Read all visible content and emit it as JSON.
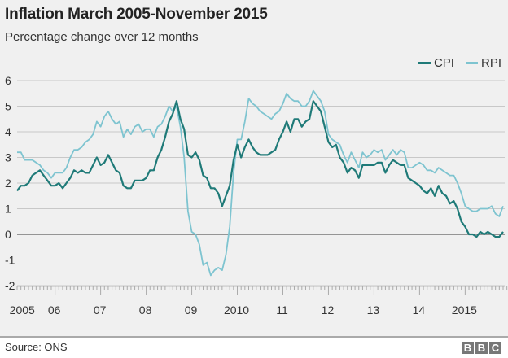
{
  "chart_data": {
    "type": "line",
    "title": "Inflation March 2005-November 2015",
    "subtitle": "Percentage change over 12 months",
    "xlabel": "",
    "ylabel": "",
    "x_start": "2005-03",
    "x_end": "2015-11",
    "x_tick_labels": [
      "2005",
      "06",
      "07",
      "08",
      "09",
      "2010",
      "11",
      "12",
      "13",
      "14",
      "2015"
    ],
    "ylim": [
      -2,
      6
    ],
    "y_ticks": [
      6,
      5,
      4,
      3,
      2,
      1,
      0,
      -1,
      -2
    ],
    "grid": true,
    "legend": "top-right",
    "series": [
      {
        "name": "CPI",
        "color": "#1f7a78",
        "values": [
          1.7,
          1.9,
          1.9,
          2.0,
          2.3,
          2.4,
          2.5,
          2.3,
          2.1,
          1.9,
          1.9,
          2.0,
          1.8,
          2.0,
          2.2,
          2.5,
          2.4,
          2.5,
          2.4,
          2.4,
          2.7,
          3.0,
          2.7,
          2.8,
          3.1,
          2.8,
          2.5,
          2.4,
          1.9,
          1.8,
          1.8,
          2.1,
          2.1,
          2.1,
          2.2,
          2.5,
          2.5,
          3.0,
          3.3,
          3.8,
          4.4,
          4.7,
          5.2,
          4.5,
          4.1,
          3.1,
          3.0,
          3.2,
          2.9,
          2.3,
          2.2,
          1.8,
          1.8,
          1.6,
          1.1,
          1.5,
          1.9,
          2.9,
          3.5,
          3.0,
          3.4,
          3.7,
          3.4,
          3.2,
          3.1,
          3.1,
          3.1,
          3.2,
          3.3,
          3.7,
          4.0,
          4.4,
          4.0,
          4.5,
          4.5,
          4.2,
          4.4,
          4.5,
          5.2,
          5.0,
          4.8,
          4.2,
          3.6,
          3.4,
          3.5,
          3.0,
          2.8,
          2.4,
          2.6,
          2.5,
          2.2,
          2.7,
          2.7,
          2.7,
          2.7,
          2.8,
          2.8,
          2.4,
          2.7,
          2.9,
          2.8,
          2.7,
          2.7,
          2.2,
          2.1,
          2.0,
          1.9,
          1.7,
          1.6,
          1.8,
          1.5,
          1.9,
          1.6,
          1.5,
          1.2,
          1.3,
          1.0,
          0.5,
          0.3,
          0.0,
          0.0,
          -0.1,
          0.1,
          0.0,
          0.1,
          0.0,
          -0.1,
          -0.1,
          0.1
        ]
      },
      {
        "name": "RPI",
        "color": "#7ec4d0",
        "values": [
          3.2,
          3.2,
          2.9,
          2.9,
          2.9,
          2.8,
          2.7,
          2.5,
          2.4,
          2.2,
          2.4,
          2.4,
          2.4,
          2.6,
          3.0,
          3.3,
          3.3,
          3.4,
          3.6,
          3.7,
          3.9,
          4.4,
          4.2,
          4.6,
          4.8,
          4.5,
          4.3,
          4.4,
          3.8,
          4.1,
          3.9,
          4.2,
          4.3,
          4.0,
          4.1,
          4.1,
          3.8,
          4.2,
          4.3,
          4.6,
          5.0,
          4.8,
          5.0,
          4.2,
          3.0,
          0.9,
          0.1,
          0.0,
          -0.4,
          -1.2,
          -1.1,
          -1.6,
          -1.4,
          -1.3,
          -1.4,
          -0.8,
          0.3,
          2.4,
          3.7,
          3.7,
          4.4,
          5.3,
          5.1,
          5.0,
          4.8,
          4.7,
          4.6,
          4.5,
          4.7,
          4.8,
          5.1,
          5.5,
          5.3,
          5.2,
          5.2,
          5.0,
          5.0,
          5.2,
          5.6,
          5.4,
          5.2,
          4.8,
          3.9,
          3.7,
          3.6,
          3.5,
          3.1,
          2.8,
          3.2,
          2.9,
          2.6,
          3.2,
          3.0,
          3.1,
          3.3,
          3.2,
          3.3,
          2.9,
          3.1,
          3.3,
          3.1,
          3.3,
          3.2,
          2.6,
          2.6,
          2.7,
          2.8,
          2.7,
          2.5,
          2.5,
          2.4,
          2.6,
          2.5,
          2.4,
          2.3,
          2.3,
          2.0,
          1.6,
          1.1,
          1.0,
          0.9,
          0.9,
          1.0,
          1.0,
          1.0,
          1.1,
          0.8,
          0.7,
          1.1
        ]
      }
    ]
  },
  "footer": {
    "source": "Source: ONS",
    "logo": [
      "B",
      "B",
      "C"
    ]
  }
}
